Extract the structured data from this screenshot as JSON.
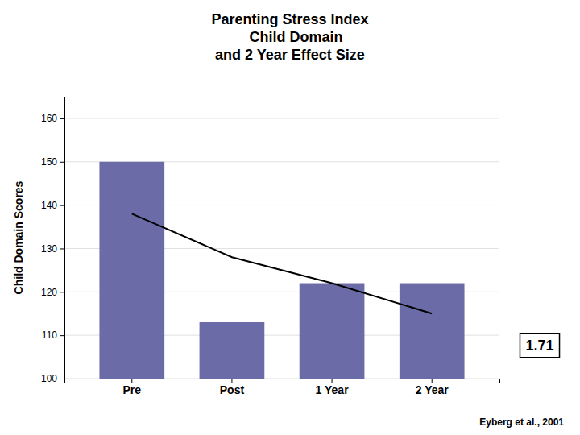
{
  "chart_data": {
    "type": "bar",
    "title": "Parenting Stress Index\n   Child Domain\nand 2 Year Effect Size",
    "categories": [
      "Pre",
      "Post",
      "1 Year",
      "2 Year"
    ],
    "series": [
      {
        "type": "bar",
        "color": "#6B6BA8",
        "values": [
          150,
          113,
          122,
          122
        ]
      },
      {
        "type": "line",
        "color": "black",
        "values": [
          138,
          128,
          122,
          115
        ]
      }
    ],
    "ylabel": "Child Domain Scores",
    "ylim": [
      100,
      165
    ],
    "yticks": [
      100,
      110,
      120,
      130,
      140,
      150,
      160
    ],
    "grid": true,
    "annotations": [
      "1.71",
      "Eyberg et al., 2001"
    ]
  }
}
